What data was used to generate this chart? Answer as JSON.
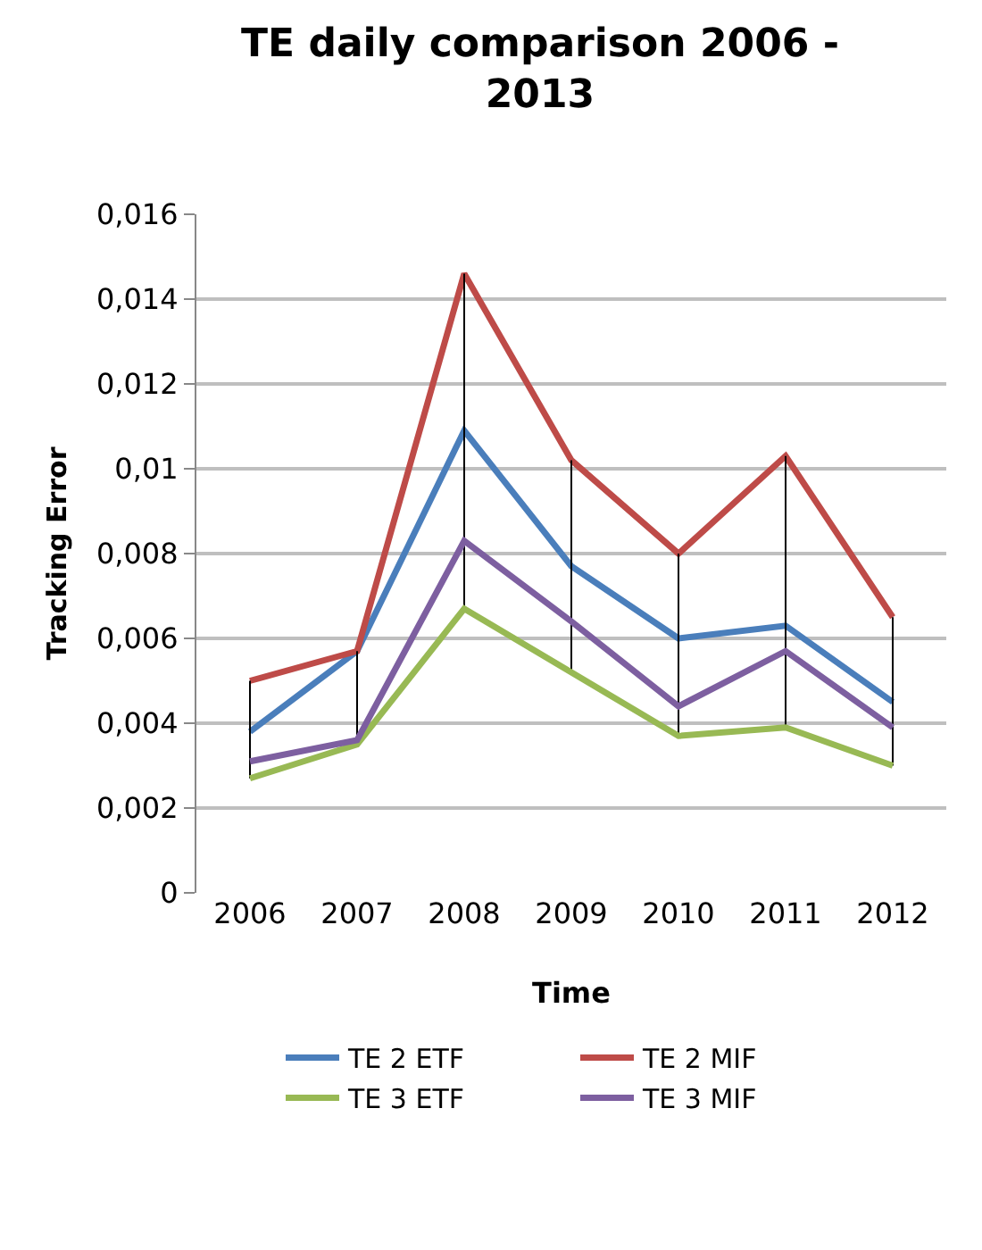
{
  "chart_data": {
    "type": "line",
    "title": "TE daily comparison 2006 - 2013",
    "xlabel": "Time",
    "ylabel": "Tracking Error",
    "categories": [
      "2006",
      "2007",
      "2008",
      "2009",
      "2010",
      "2011",
      "2012"
    ],
    "series": [
      {
        "name": "TE 2 ETF",
        "color": "#4a7ebb",
        "values": [
          0.0038,
          0.0057,
          0.0109,
          0.0077,
          0.006,
          0.0063,
          0.0045
        ]
      },
      {
        "name": "TE 2 MIF",
        "color": "#be4b48",
        "values": [
          0.005,
          0.0057,
          0.0146,
          0.0102,
          0.008,
          0.0103,
          0.0065
        ]
      },
      {
        "name": "TE 3 ETF",
        "color": "#98b954",
        "values": [
          0.0027,
          0.0035,
          0.0067,
          0.0052,
          0.0037,
          0.0039,
          0.003
        ],
        "errors": [
          [
            0.0027,
            0.005
          ],
          [
            0.0035,
            0.0057
          ],
          [
            0.0067,
            0.0146
          ],
          [
            0.0052,
            0.0102
          ],
          [
            0.0037,
            0.008
          ],
          [
            0.0039,
            0.0103
          ],
          [
            0.003,
            0.0065
          ]
        ]
      },
      {
        "name": "TE 3 MIF",
        "color": "#7d5fa0",
        "values": [
          0.0031,
          0.0036,
          0.0083,
          0.0064,
          0.0044,
          0.0057,
          0.0039
        ]
      }
    ],
    "ylim": [
      0,
      0.016
    ],
    "yticks": [
      {
        "value": 0,
        "label": "0"
      },
      {
        "value": 0.002,
        "label": "0,002"
      },
      {
        "value": 0.004,
        "label": "0,004"
      },
      {
        "value": 0.006,
        "label": "0,006"
      },
      {
        "value": 0.008,
        "label": "0,008"
      },
      {
        "value": 0.01,
        "label": "0,01"
      },
      {
        "value": 0.012,
        "label": "0,012"
      },
      {
        "value": 0.014,
        "label": "0,014"
      },
      {
        "value": 0.016,
        "label": "0,016"
      }
    ],
    "grid": "y",
    "legend": "bottom",
    "marker": "none",
    "line_style": "solid"
  }
}
